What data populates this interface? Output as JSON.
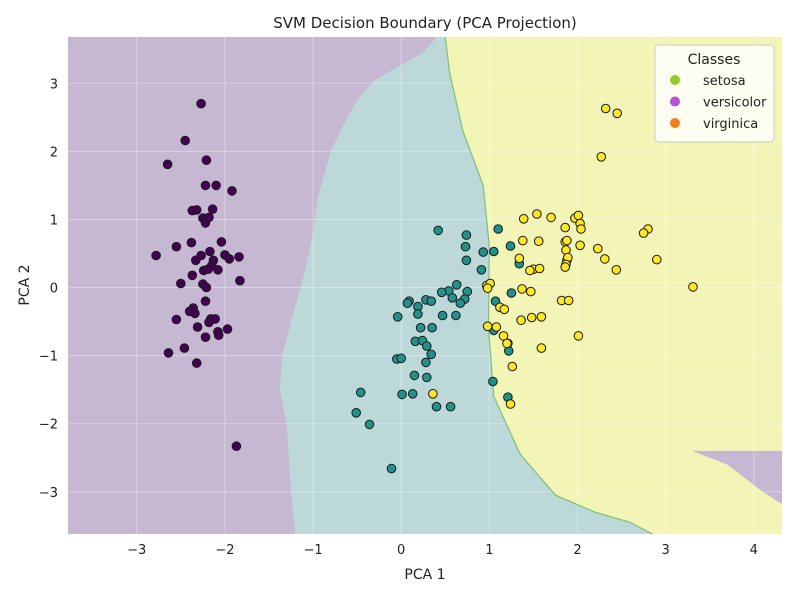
{
  "chart_data": {
    "type": "scatter",
    "title": "SVM Decision Boundary (PCA Projection)",
    "xlabel": "PCA 1",
    "ylabel": "PCA 2",
    "xlim": [
      -3.78,
      4.32
    ],
    "ylim": [
      -3.62,
      3.68
    ],
    "xticks": [
      -3,
      -2,
      -1,
      0,
      1,
      2,
      3,
      4
    ],
    "yticks": [
      -3,
      -2,
      -1,
      0,
      1,
      2,
      3
    ],
    "x_tick_labels": [
      "−3",
      "−2",
      "−1",
      "0",
      "1",
      "2",
      "3",
      "4"
    ],
    "y_tick_labels": [
      "−3",
      "−2",
      "−1",
      "0",
      "1",
      "2",
      "3"
    ],
    "grid": true,
    "legend": {
      "title": "Classes",
      "placement": "top-right",
      "entries": [
        {
          "label": "setosa",
          "color": "#8fce2e"
        },
        {
          "label": "versicolor",
          "color": "#b84fd6"
        },
        {
          "label": "virginica",
          "color": "#f57f17"
        }
      ]
    },
    "regions": [
      {
        "class": "setosa",
        "color": "#c6b8d3"
      },
      {
        "class": "versicolor",
        "color": "#bcd8d9"
      },
      {
        "class": "virginica",
        "color": "#f2f5b6"
      }
    ],
    "series": [
      {
        "class": "setosa",
        "color": "#440154",
        "points": [
          [
            -2.27,
            2.7
          ],
          [
            -2.45,
            2.16
          ],
          [
            -2.65,
            1.81
          ],
          [
            -2.21,
            1.87
          ],
          [
            -2.22,
            1.5
          ],
          [
            -2.1,
            1.5
          ],
          [
            -1.92,
            1.42
          ],
          [
            -2.37,
            1.13
          ],
          [
            -2.32,
            1.14
          ],
          [
            -2.14,
            1.15
          ],
          [
            -2.25,
            1.02
          ],
          [
            -2.22,
            0.95
          ],
          [
            -2.18,
            1.03
          ],
          [
            -2.55,
            0.6
          ],
          [
            -2.38,
            0.66
          ],
          [
            -2.04,
            0.67
          ],
          [
            -2.27,
            0.47
          ],
          [
            -2.17,
            0.53
          ],
          [
            -2.78,
            0.47
          ],
          [
            -2.0,
            0.48
          ],
          [
            -1.84,
            0.45
          ],
          [
            -1.95,
            0.42
          ],
          [
            -2.13,
            0.4
          ],
          [
            -2.33,
            0.4
          ],
          [
            -2.24,
            0.25
          ],
          [
            -2.15,
            0.32
          ],
          [
            -2.08,
            0.26
          ],
          [
            -2.19,
            0.27
          ],
          [
            -2.37,
            0.18
          ],
          [
            -1.83,
            0.1
          ],
          [
            -2.5,
            0.06
          ],
          [
            -2.25,
            0.05
          ],
          [
            -2.21,
            0.0
          ],
          [
            -2.36,
            -0.3
          ],
          [
            -2.34,
            -0.38
          ],
          [
            -2.22,
            -0.2
          ],
          [
            -2.4,
            -0.35
          ],
          [
            -2.55,
            -0.47
          ],
          [
            -2.16,
            -0.46
          ],
          [
            -2.11,
            -0.46
          ],
          [
            -2.31,
            -0.58
          ],
          [
            -2.18,
            -0.51
          ],
          [
            -1.97,
            -0.61
          ],
          [
            -2.22,
            -0.73
          ],
          [
            -2.08,
            -0.65
          ],
          [
            -2.07,
            -0.7
          ],
          [
            -2.46,
            -0.89
          ],
          [
            -2.64,
            -0.96
          ],
          [
            -2.32,
            -1.11
          ],
          [
            -1.87,
            -2.33
          ]
        ]
      },
      {
        "class": "versicolor",
        "color": "#21918c",
        "points": [
          [
            0.42,
            0.84
          ],
          [
            0.74,
            0.77
          ],
          [
            1.1,
            0.86
          ],
          [
            0.73,
            0.6
          ],
          [
            0.93,
            0.52
          ],
          [
            1.05,
            0.53
          ],
          [
            1.24,
            0.61
          ],
          [
            1.34,
            0.35
          ],
          [
            0.74,
            0.4
          ],
          [
            0.91,
            0.26
          ],
          [
            0.63,
            0.04
          ],
          [
            0.75,
            -0.06
          ],
          [
            0.54,
            -0.05
          ],
          [
            0.46,
            -0.07
          ],
          [
            0.28,
            -0.18
          ],
          [
            0.58,
            -0.15
          ],
          [
            0.72,
            -0.17
          ],
          [
            0.67,
            -0.23
          ],
          [
            1.07,
            -0.2
          ],
          [
            1.25,
            -0.08
          ],
          [
            0.09,
            -0.2
          ],
          [
            0.07,
            -0.23
          ],
          [
            0.19,
            -0.28
          ],
          [
            0.34,
            -0.2
          ],
          [
            -0.04,
            -0.43
          ],
          [
            0.19,
            -0.39
          ],
          [
            0.47,
            -0.41
          ],
          [
            0.62,
            -0.41
          ],
          [
            0.22,
            -0.59
          ],
          [
            0.35,
            -0.59
          ],
          [
            1.05,
            -0.63
          ],
          [
            0.16,
            -0.79
          ],
          [
            0.24,
            -0.78
          ],
          [
            1.21,
            -0.82
          ],
          [
            0.29,
            -0.86
          ],
          [
            1.22,
            -0.93
          ],
          [
            -0.05,
            -1.05
          ],
          [
            0.0,
            -1.04
          ],
          [
            0.34,
            -0.98
          ],
          [
            0.28,
            -1.1
          ],
          [
            0.15,
            -1.29
          ],
          [
            0.29,
            -1.32
          ],
          [
            1.04,
            -1.38
          ],
          [
            -0.46,
            -1.54
          ],
          [
            0.01,
            -1.57
          ],
          [
            0.13,
            -1.56
          ],
          [
            0.4,
            -1.75
          ],
          [
            0.56,
            -1.75
          ],
          [
            -0.51,
            -1.84
          ],
          [
            -0.36,
            -2.01
          ],
          [
            -0.11,
            -2.66
          ],
          [
            1.21,
            -1.61
          ]
        ]
      },
      {
        "class": "virginica",
        "color": "#fde725",
        "points": [
          [
            2.32,
            2.63
          ],
          [
            2.45,
            2.56
          ],
          [
            2.27,
            1.92
          ],
          [
            1.54,
            1.08
          ],
          [
            1.39,
            1.01
          ],
          [
            1.7,
            1.03
          ],
          [
            1.97,
            1.02
          ],
          [
            2.01,
            1.06
          ],
          [
            2.03,
            0.94
          ],
          [
            1.86,
            0.88
          ],
          [
            2.04,
            0.86
          ],
          [
            1.86,
            0.67
          ],
          [
            1.88,
            0.69
          ],
          [
            2.03,
            0.62
          ],
          [
            2.23,
            0.57
          ],
          [
            1.38,
            0.69
          ],
          [
            1.56,
            0.68
          ],
          [
            1.87,
            0.55
          ],
          [
            2.8,
            0.86
          ],
          [
            2.75,
            0.8
          ],
          [
            1.34,
            0.43
          ],
          [
            1.88,
            0.4
          ],
          [
            1.89,
            0.44
          ],
          [
            1.87,
            0.34
          ],
          [
            1.86,
            0.3
          ],
          [
            2.31,
            0.42
          ],
          [
            2.44,
            0.26
          ],
          [
            2.9,
            0.41
          ],
          [
            3.31,
            0.01
          ],
          [
            1.5,
            0.27
          ],
          [
            1.57,
            0.28
          ],
          [
            1.46,
            0.25
          ],
          [
            0.97,
            0.03
          ],
          [
            1.01,
            0.06
          ],
          [
            0.98,
            -0.01
          ],
          [
            1.47,
            -0.06
          ],
          [
            1.37,
            -0.02
          ],
          [
            1.82,
            -0.19
          ],
          [
            1.9,
            -0.19
          ],
          [
            1.12,
            -0.29
          ],
          [
            1.17,
            -0.32
          ],
          [
            1.59,
            -0.43
          ],
          [
            1.48,
            -0.44
          ],
          [
            1.36,
            -0.48
          ],
          [
            0.98,
            -0.57
          ],
          [
            1.08,
            -0.58
          ],
          [
            1.16,
            -0.71
          ],
          [
            1.2,
            -0.82
          ],
          [
            2.01,
            -0.71
          ],
          [
            1.59,
            -0.89
          ],
          [
            1.26,
            -1.16
          ],
          [
            0.36,
            -1.56
          ],
          [
            1.24,
            -1.71
          ]
        ]
      }
    ]
  }
}
